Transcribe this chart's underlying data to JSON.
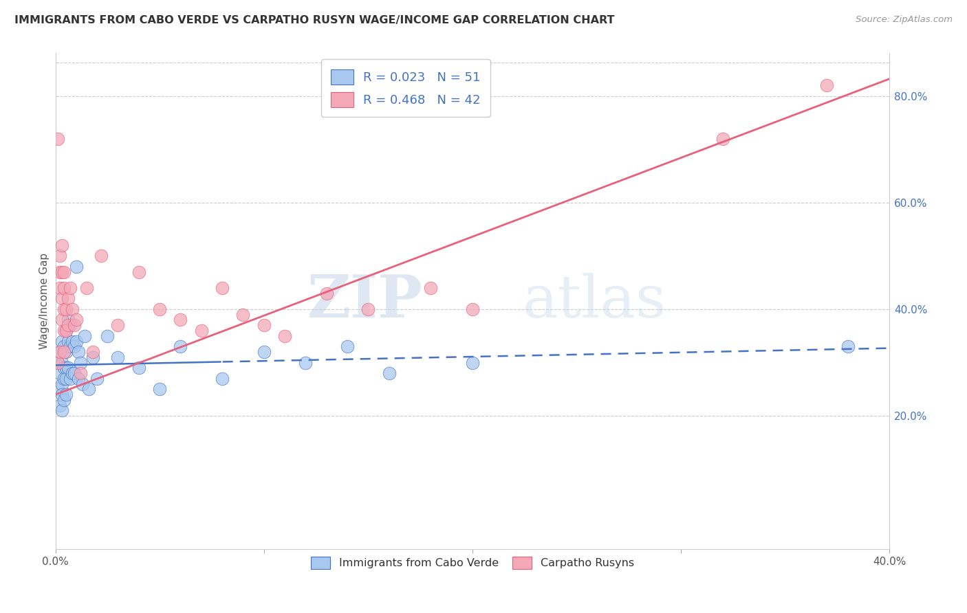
{
  "title": "IMMIGRANTS FROM CABO VERDE VS CARPATHO RUSYN WAGE/INCOME GAP CORRELATION CHART",
  "source": "Source: ZipAtlas.com",
  "xlabel_blue": "Immigrants from Cabo Verde",
  "xlabel_pink": "Carpatho Rusyns",
  "ylabel": "Wage/Income Gap",
  "R_blue": 0.023,
  "N_blue": 51,
  "R_pink": 0.468,
  "N_pink": 42,
  "xlim": [
    0.0,
    0.4
  ],
  "ylim": [
    -0.05,
    0.88
  ],
  "color_blue": "#A8C8F0",
  "color_pink": "#F4A8B8",
  "line_color_blue": "#4472C4",
  "line_color_pink": "#E8607A",
  "blue_x": [
    0.001,
    0.001,
    0.002,
    0.002,
    0.002,
    0.003,
    0.003,
    0.003,
    0.003,
    0.003,
    0.004,
    0.004,
    0.004,
    0.004,
    0.005,
    0.005,
    0.005,
    0.005,
    0.005,
    0.006,
    0.006,
    0.006,
    0.007,
    0.007,
    0.007,
    0.008,
    0.008,
    0.009,
    0.009,
    0.01,
    0.01,
    0.011,
    0.011,
    0.012,
    0.013,
    0.014,
    0.016,
    0.018,
    0.02,
    0.025,
    0.03,
    0.04,
    0.05,
    0.06,
    0.08,
    0.1,
    0.12,
    0.14,
    0.16,
    0.2,
    0.38
  ],
  "blue_y": [
    0.3,
    0.25,
    0.32,
    0.28,
    0.22,
    0.34,
    0.3,
    0.26,
    0.24,
    0.21,
    0.33,
    0.29,
    0.27,
    0.23,
    0.36,
    0.32,
    0.29,
    0.27,
    0.24,
    0.38,
    0.34,
    0.29,
    0.37,
    0.33,
    0.27,
    0.34,
    0.28,
    0.33,
    0.28,
    0.48,
    0.34,
    0.32,
    0.27,
    0.3,
    0.26,
    0.35,
    0.25,
    0.31,
    0.27,
    0.35,
    0.31,
    0.29,
    0.25,
    0.33,
    0.27,
    0.32,
    0.3,
    0.33,
    0.28,
    0.3,
    0.33
  ],
  "pink_x": [
    0.001,
    0.001,
    0.002,
    0.002,
    0.002,
    0.002,
    0.003,
    0.003,
    0.003,
    0.003,
    0.004,
    0.004,
    0.004,
    0.004,
    0.004,
    0.005,
    0.005,
    0.006,
    0.006,
    0.007,
    0.008,
    0.009,
    0.01,
    0.012,
    0.015,
    0.018,
    0.022,
    0.03,
    0.04,
    0.05,
    0.06,
    0.07,
    0.08,
    0.09,
    0.1,
    0.11,
    0.13,
    0.15,
    0.18,
    0.2,
    0.32,
    0.37
  ],
  "pink_y": [
    0.72,
    0.3,
    0.32,
    0.5,
    0.47,
    0.44,
    0.52,
    0.47,
    0.42,
    0.38,
    0.47,
    0.44,
    0.4,
    0.36,
    0.32,
    0.4,
    0.36,
    0.42,
    0.37,
    0.44,
    0.4,
    0.37,
    0.38,
    0.28,
    0.44,
    0.32,
    0.5,
    0.37,
    0.47,
    0.4,
    0.38,
    0.36,
    0.44,
    0.39,
    0.37,
    0.35,
    0.43,
    0.4,
    0.44,
    0.4,
    0.72,
    0.82
  ],
  "watermark_zip": "ZIP",
  "watermark_atlas": "atlas",
  "background_color": "#FFFFFF",
  "grid_color": "#CCCCCC",
  "line_blue_solid_end": 0.08,
  "line_blue_intercept": 0.295,
  "line_blue_slope": 0.08,
  "line_pink_intercept": 0.24,
  "line_pink_slope": 1.48
}
